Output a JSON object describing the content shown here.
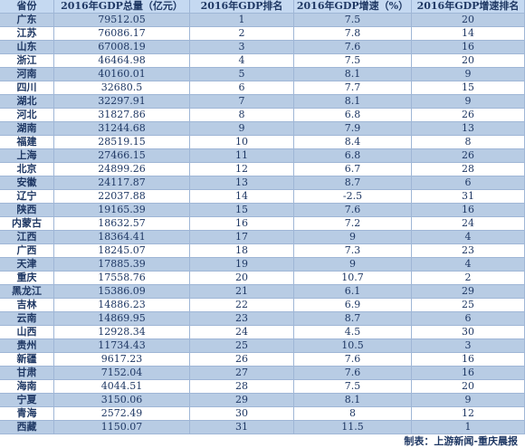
{
  "table": {
    "header": [
      "省份",
      "2016年GDP总量（亿元）",
      "2016年GDP排名",
      "2016年GDP增速（%）",
      "2016年GDP增速排名"
    ],
    "rows": [
      [
        "广东",
        "79512.05",
        "1",
        "7.5",
        "20"
      ],
      [
        "江苏",
        "76086.17",
        "2",
        "7.8",
        "14"
      ],
      [
        "山东",
        "67008.19",
        "3",
        "7.6",
        "16"
      ],
      [
        "浙江",
        "46464.98",
        "4",
        "7.5",
        "20"
      ],
      [
        "河南",
        "40160.01",
        "5",
        "8.1",
        "9"
      ],
      [
        "四川",
        "32680.5",
        "6",
        "7.7",
        "15"
      ],
      [
        "湖北",
        "32297.91",
        "7",
        "8.1",
        "9"
      ],
      [
        "河北",
        "31827.86",
        "8",
        "6.8",
        "26"
      ],
      [
        "湖南",
        "31244.68",
        "9",
        "7.9",
        "13"
      ],
      [
        "福建",
        "28519.15",
        "10",
        "8.4",
        "8"
      ],
      [
        "上海",
        "27466.15",
        "11",
        "6.8",
        "26"
      ],
      [
        "北京",
        "24899.26",
        "12",
        "6.7",
        "28"
      ],
      [
        "安徽",
        "24117.87",
        "13",
        "8.7",
        "6"
      ],
      [
        "辽宁",
        "22037.88",
        "14",
        "-2.5",
        "31"
      ],
      [
        "陕西",
        "19165.39",
        "15",
        "7.6",
        "16"
      ],
      [
        "内蒙古",
        "18632.57",
        "16",
        "7.2",
        "24"
      ],
      [
        "江西",
        "18364.41",
        "17",
        "9",
        "4"
      ],
      [
        "广西",
        "18245.07",
        "18",
        "7.3",
        "23"
      ],
      [
        "天津",
        "17885.39",
        "19",
        "9",
        "4"
      ],
      [
        "重庆",
        "17558.76",
        "20",
        "10.7",
        "2"
      ],
      [
        "黑龙江",
        "15386.09",
        "21",
        "6.1",
        "29"
      ],
      [
        "吉林",
        "14886.23",
        "22",
        "6.9",
        "25"
      ],
      [
        "云南",
        "14869.95",
        "23",
        "8.7",
        "6"
      ],
      [
        "山西",
        "12928.34",
        "24",
        "4.5",
        "30"
      ],
      [
        "贵州",
        "11734.43",
        "25",
        "10.5",
        "3"
      ],
      [
        "新疆",
        "9617.23",
        "26",
        "7.6",
        "16"
      ],
      [
        "甘肃",
        "7152.04",
        "27",
        "7.6",
        "16"
      ],
      [
        "海南",
        "4044.51",
        "28",
        "7.5",
        "20"
      ],
      [
        "宁夏",
        "3150.06",
        "29",
        "8.1",
        "9"
      ],
      [
        "青海",
        "2572.49",
        "30",
        "8",
        "12"
      ],
      [
        "西藏",
        "1150.07",
        "31",
        "11.5",
        "1"
      ]
    ]
  },
  "footer": "制表：上游新闻-重庆晨报"
}
